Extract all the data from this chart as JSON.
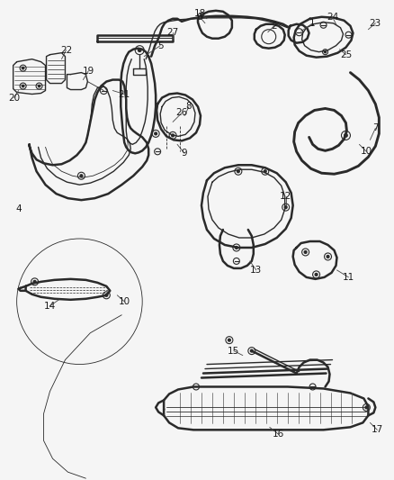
{
  "bg_color": "#f5f5f5",
  "line_color": "#2a2a2a",
  "label_color": "#1a1a1a",
  "fig_width": 4.38,
  "fig_height": 5.33,
  "dpi": 100
}
